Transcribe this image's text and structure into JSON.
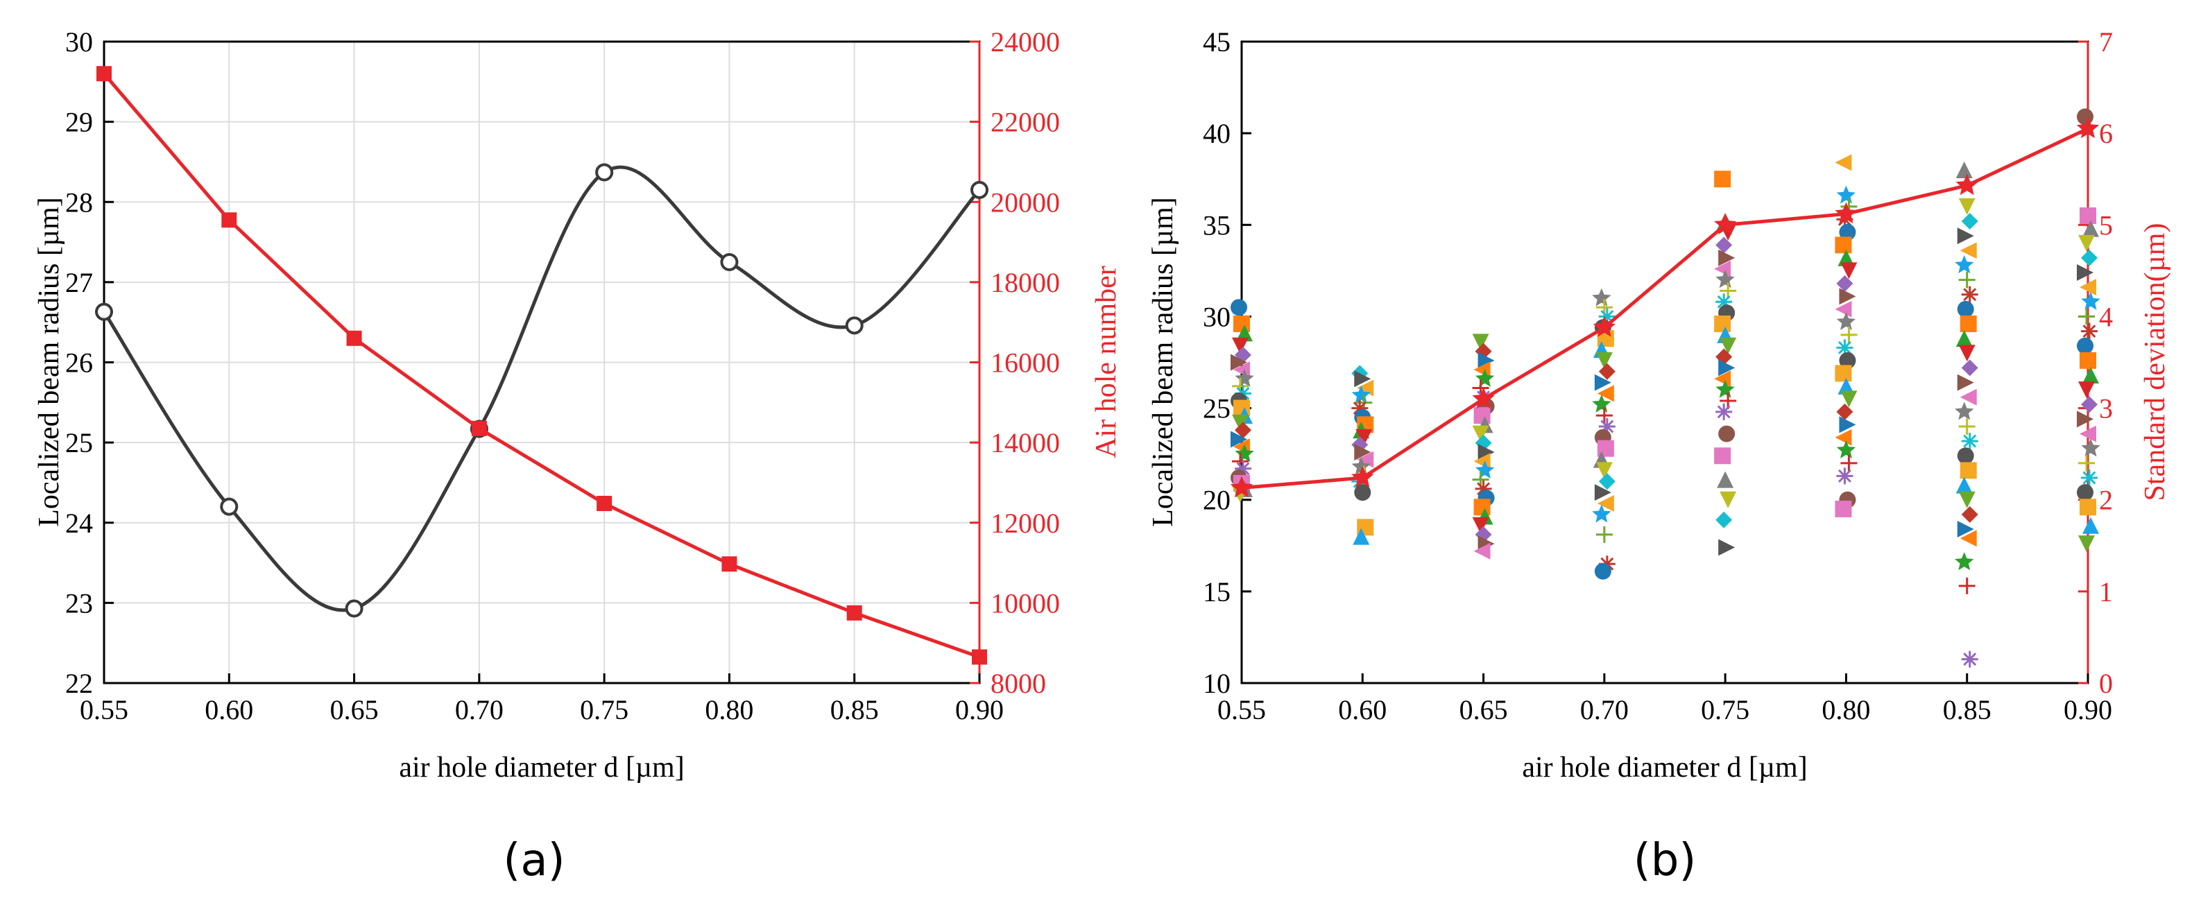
{
  "chart_data": [
    {
      "id": "a",
      "type": "line",
      "caption": "(a)",
      "xlabel": "air hole diameter d [µm]",
      "ylabel": "Localized beam radius [µm]",
      "y2label": "Air hole number",
      "xlim": [
        0.55,
        0.9
      ],
      "ylim": [
        22,
        30
      ],
      "y2lim": [
        8000,
        24000
      ],
      "xticks": [
        "0.55",
        "0.60",
        "0.65",
        "0.70",
        "0.75",
        "0.80",
        "0.85",
        "0.90"
      ],
      "yticks": [
        "22",
        "23",
        "24",
        "25",
        "26",
        "27",
        "28",
        "29",
        "30"
      ],
      "y2ticks": [
        "8000",
        "10000",
        "12000",
        "14000",
        "16000",
        "18000",
        "20000",
        "22000",
        "24000"
      ],
      "grid": true,
      "colors": {
        "series1": "#3a3a3a",
        "series2": "#e8262b"
      },
      "series": [
        {
          "name": "Localized beam radius",
          "axis": "left",
          "color": "#3a3a3a",
          "marker": "open-circle",
          "smooth": true,
          "x": [
            0.55,
            0.6,
            0.65,
            0.7,
            0.75,
            0.8,
            0.85,
            0.9
          ],
          "values": [
            26.63,
            24.2,
            22.93,
            25.17,
            28.37,
            27.25,
            26.46,
            28.15
          ]
        },
        {
          "name": "Air hole number",
          "axis": "right",
          "color": "#e8262b",
          "marker": "square",
          "x": [
            0.55,
            0.6,
            0.65,
            0.7,
            0.75,
            0.8,
            0.85,
            0.9
          ],
          "values": [
            23200,
            19550,
            16600,
            14350,
            12480,
            10970,
            9750,
            8650
          ]
        }
      ]
    },
    {
      "id": "b",
      "type": "scatter",
      "caption": "(b)",
      "xlabel": "air hole diameter d [µm]",
      "ylabel": "Localized beam radius [µm]",
      "y2label": "Standard deviation(µm)",
      "xlim": [
        0.55,
        0.9
      ],
      "ylim": [
        10,
        45
      ],
      "y2lim": [
        0,
        7
      ],
      "xticks": [
        "0.55",
        "0.60",
        "0.65",
        "0.70",
        "0.75",
        "0.80",
        "0.85",
        "0.90"
      ],
      "yticks": [
        "10",
        "15",
        "20",
        "25",
        "30",
        "35",
        "40",
        "45"
      ],
      "y2ticks": [
        "0",
        "1",
        "2",
        "3",
        "4",
        "5",
        "6",
        "7"
      ],
      "grid": false,
      "scatter_groups": [
        {
          "x": 0.55,
          "values": [
            30.5,
            29.6,
            29.1,
            28.4,
            27.9,
            27.5,
            27.1,
            26.6,
            26.2,
            25.8,
            25.4,
            25.0,
            24.6,
            24.2,
            23.8,
            23.3,
            22.9,
            22.5,
            22.1,
            21.7,
            21.2,
            20.9,
            20.6,
            20.3
          ]
        },
        {
          "x": 0.6,
          "values": [
            26.9,
            26.6,
            26.1,
            25.7,
            25.3,
            25.0,
            24.5,
            24.1,
            23.8,
            23.4,
            23.0,
            22.6,
            22.2,
            21.8,
            21.4,
            21.0,
            20.4,
            18.5,
            18.0
          ]
        },
        {
          "x": 0.65,
          "values": [
            28.6,
            28.1,
            27.6,
            27.1,
            26.6,
            26.1,
            25.6,
            25.1,
            24.6,
            24.1,
            23.6,
            23.1,
            22.6,
            22.1,
            21.6,
            21.1,
            20.6,
            20.1,
            19.6,
            19.1,
            18.6,
            18.1,
            17.6,
            17.2
          ]
        },
        {
          "x": 0.7,
          "values": [
            31.0,
            30.5,
            30.0,
            29.4,
            28.8,
            28.2,
            27.6,
            27.0,
            26.4,
            25.8,
            25.2,
            24.6,
            24.0,
            23.4,
            22.8,
            22.2,
            21.6,
            21.0,
            20.4,
            19.8,
            19.2,
            18.1,
            16.5,
            16.1
          ]
        },
        {
          "x": 0.75,
          "values": [
            37.5,
            35.2,
            34.6,
            33.9,
            33.2,
            32.6,
            32.0,
            31.4,
            30.8,
            30.2,
            29.6,
            29.0,
            28.4,
            27.8,
            27.2,
            26.6,
            26.0,
            25.4,
            24.8,
            23.6,
            22.4,
            21.1,
            20.0,
            18.9,
            17.4
          ]
        },
        {
          "x": 0.8,
          "values": [
            38.4,
            36.6,
            36.0,
            35.3,
            34.6,
            33.9,
            33.2,
            32.5,
            31.8,
            31.1,
            30.4,
            29.7,
            29.0,
            28.3,
            27.6,
            26.9,
            26.2,
            25.5,
            24.8,
            24.1,
            23.4,
            22.7,
            22.0,
            21.3,
            20.0,
            19.5
          ]
        },
        {
          "x": 0.85,
          "values": [
            38.0,
            36.0,
            35.2,
            34.4,
            33.6,
            32.8,
            32.0,
            31.2,
            30.4,
            29.6,
            28.8,
            28.0,
            27.2,
            26.4,
            25.6,
            24.8,
            24.0,
            23.2,
            22.4,
            21.6,
            20.8,
            20.0,
            19.2,
            18.4,
            17.9,
            16.6,
            15.3,
            11.3
          ]
        },
        {
          "x": 0.9,
          "values": [
            40.9,
            35.5,
            34.8,
            34.0,
            33.2,
            32.4,
            31.6,
            30.8,
            30.0,
            29.2,
            28.4,
            27.6,
            26.8,
            26.0,
            25.2,
            24.4,
            23.6,
            22.8,
            22.0,
            21.2,
            20.4,
            19.6,
            18.6,
            17.6
          ]
        }
      ],
      "series": [
        {
          "name": "Standard deviation",
          "axis": "right",
          "color": "#e8262b",
          "marker": "star",
          "x": [
            0.55,
            0.6,
            0.65,
            0.7,
            0.75,
            0.8,
            0.85,
            0.9
          ],
          "values": [
            2.13,
            2.24,
            3.1,
            3.88,
            5.0,
            5.12,
            5.43,
            6.05
          ]
        }
      ],
      "palette": [
        "#1f77b4",
        "#ff7f0e",
        "#2ca02c",
        "#d62728",
        "#9467bd",
        "#8c564b",
        "#e377c2",
        "#7f7f7f",
        "#bcbd22",
        "#17becf",
        "#555555",
        "#f5a623",
        "#1aa3e8",
        "#6aaa2a",
        "#c0392b"
      ]
    }
  ]
}
